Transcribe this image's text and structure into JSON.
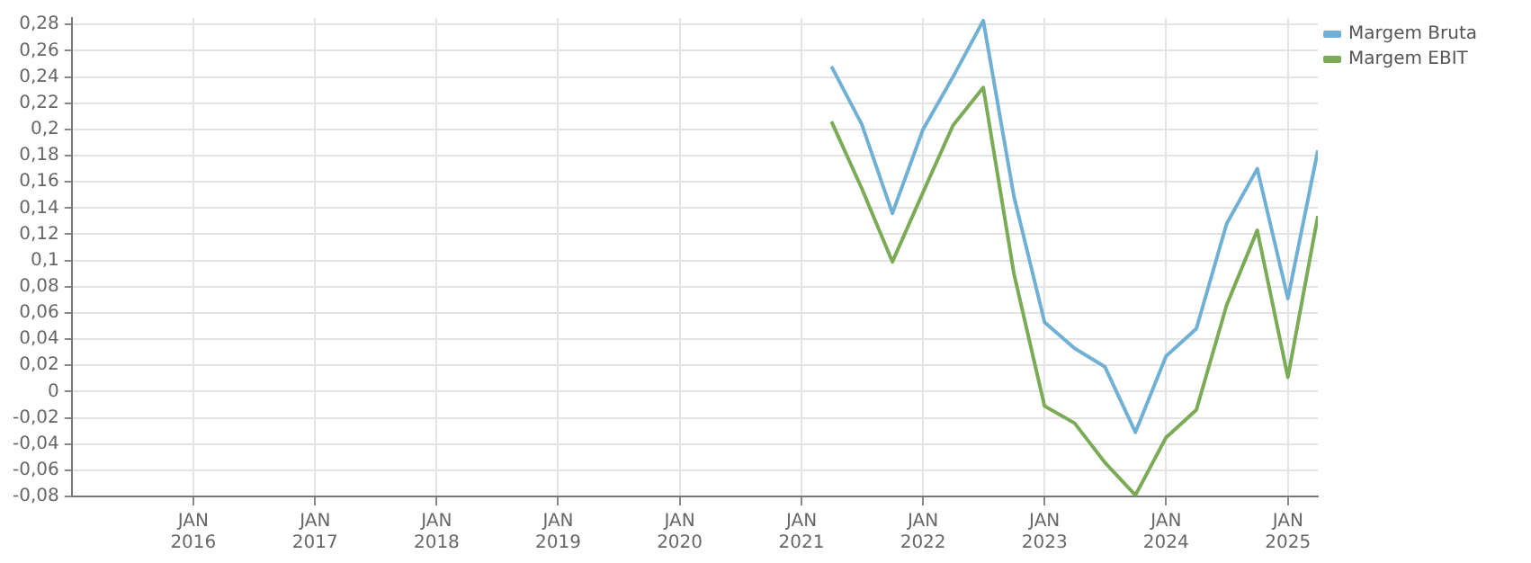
{
  "chart_data": {
    "type": "line",
    "x": [
      "2021-04",
      "2021-07",
      "2021-10",
      "2022-01",
      "2022-04",
      "2022-07",
      "2022-10",
      "2023-01",
      "2023-04",
      "2023-07",
      "2023-10",
      "2024-01",
      "2024-04",
      "2024-07",
      "2024-10",
      "2025-01",
      "2025-04"
    ],
    "series": [
      {
        "name": "Margem Bruta",
        "color": "#70b0d4",
        "values": [
          0.248,
          0.204,
          0.136,
          0.2,
          0.24,
          0.283,
          0.149,
          0.053,
          0.033,
          0.019,
          -0.031,
          0.027,
          0.048,
          0.128,
          0.17,
          0.071,
          0.184
        ]
      },
      {
        "name": "Margem EBIT",
        "color": "#7bab57",
        "values": [
          0.206,
          0.155,
          0.099,
          0.152,
          0.203,
          0.232,
          0.09,
          -0.011,
          -0.024,
          -0.054,
          -0.079,
          -0.035,
          -0.014,
          0.066,
          0.123,
          0.011,
          0.134
        ]
      }
    ],
    "xlim": [
      "2015-01",
      "2025-04"
    ],
    "xticks": [
      {
        "value": "2016-01",
        "label": "JAN 2016"
      },
      {
        "value": "2017-01",
        "label": "JAN 2017"
      },
      {
        "value": "2018-01",
        "label": "JAN 2018"
      },
      {
        "value": "2019-01",
        "label": "JAN 2019"
      },
      {
        "value": "2020-01",
        "label": "JAN 2020"
      },
      {
        "value": "2021-01",
        "label": "JAN 2021"
      },
      {
        "value": "2022-01",
        "label": "JAN 2022"
      },
      {
        "value": "2023-01",
        "label": "JAN 2023"
      },
      {
        "value": "2024-01",
        "label": "JAN 2024"
      },
      {
        "value": "2025-01",
        "label": "JAN 2025"
      }
    ],
    "ylim": [
      -0.08,
      0.285
    ],
    "yticks": [
      {
        "value": -0.08,
        "label": "-0,08"
      },
      {
        "value": -0.06,
        "label": "-0,06"
      },
      {
        "value": -0.04,
        "label": "-0,04"
      },
      {
        "value": -0.02,
        "label": "-0,02"
      },
      {
        "value": 0,
        "label": "0"
      },
      {
        "value": 0.02,
        "label": "0,02"
      },
      {
        "value": 0.04,
        "label": "0,04"
      },
      {
        "value": 0.06,
        "label": "0,06"
      },
      {
        "value": 0.08,
        "label": "0,08"
      },
      {
        "value": 0.1,
        "label": "0,1"
      },
      {
        "value": 0.12,
        "label": "0,12"
      },
      {
        "value": 0.14,
        "label": "0,14"
      },
      {
        "value": 0.16,
        "label": "0,16"
      },
      {
        "value": 0.18,
        "label": "0,18"
      },
      {
        "value": 0.2,
        "label": "0,2"
      },
      {
        "value": 0.22,
        "label": "0,22"
      },
      {
        "value": 0.24,
        "label": "0,24"
      },
      {
        "value": 0.26,
        "label": "0,26"
      },
      {
        "value": 0.28,
        "label": "0,28"
      }
    ],
    "grid": true,
    "legend": "top right",
    "marker": "none",
    "line_style": "solid"
  }
}
